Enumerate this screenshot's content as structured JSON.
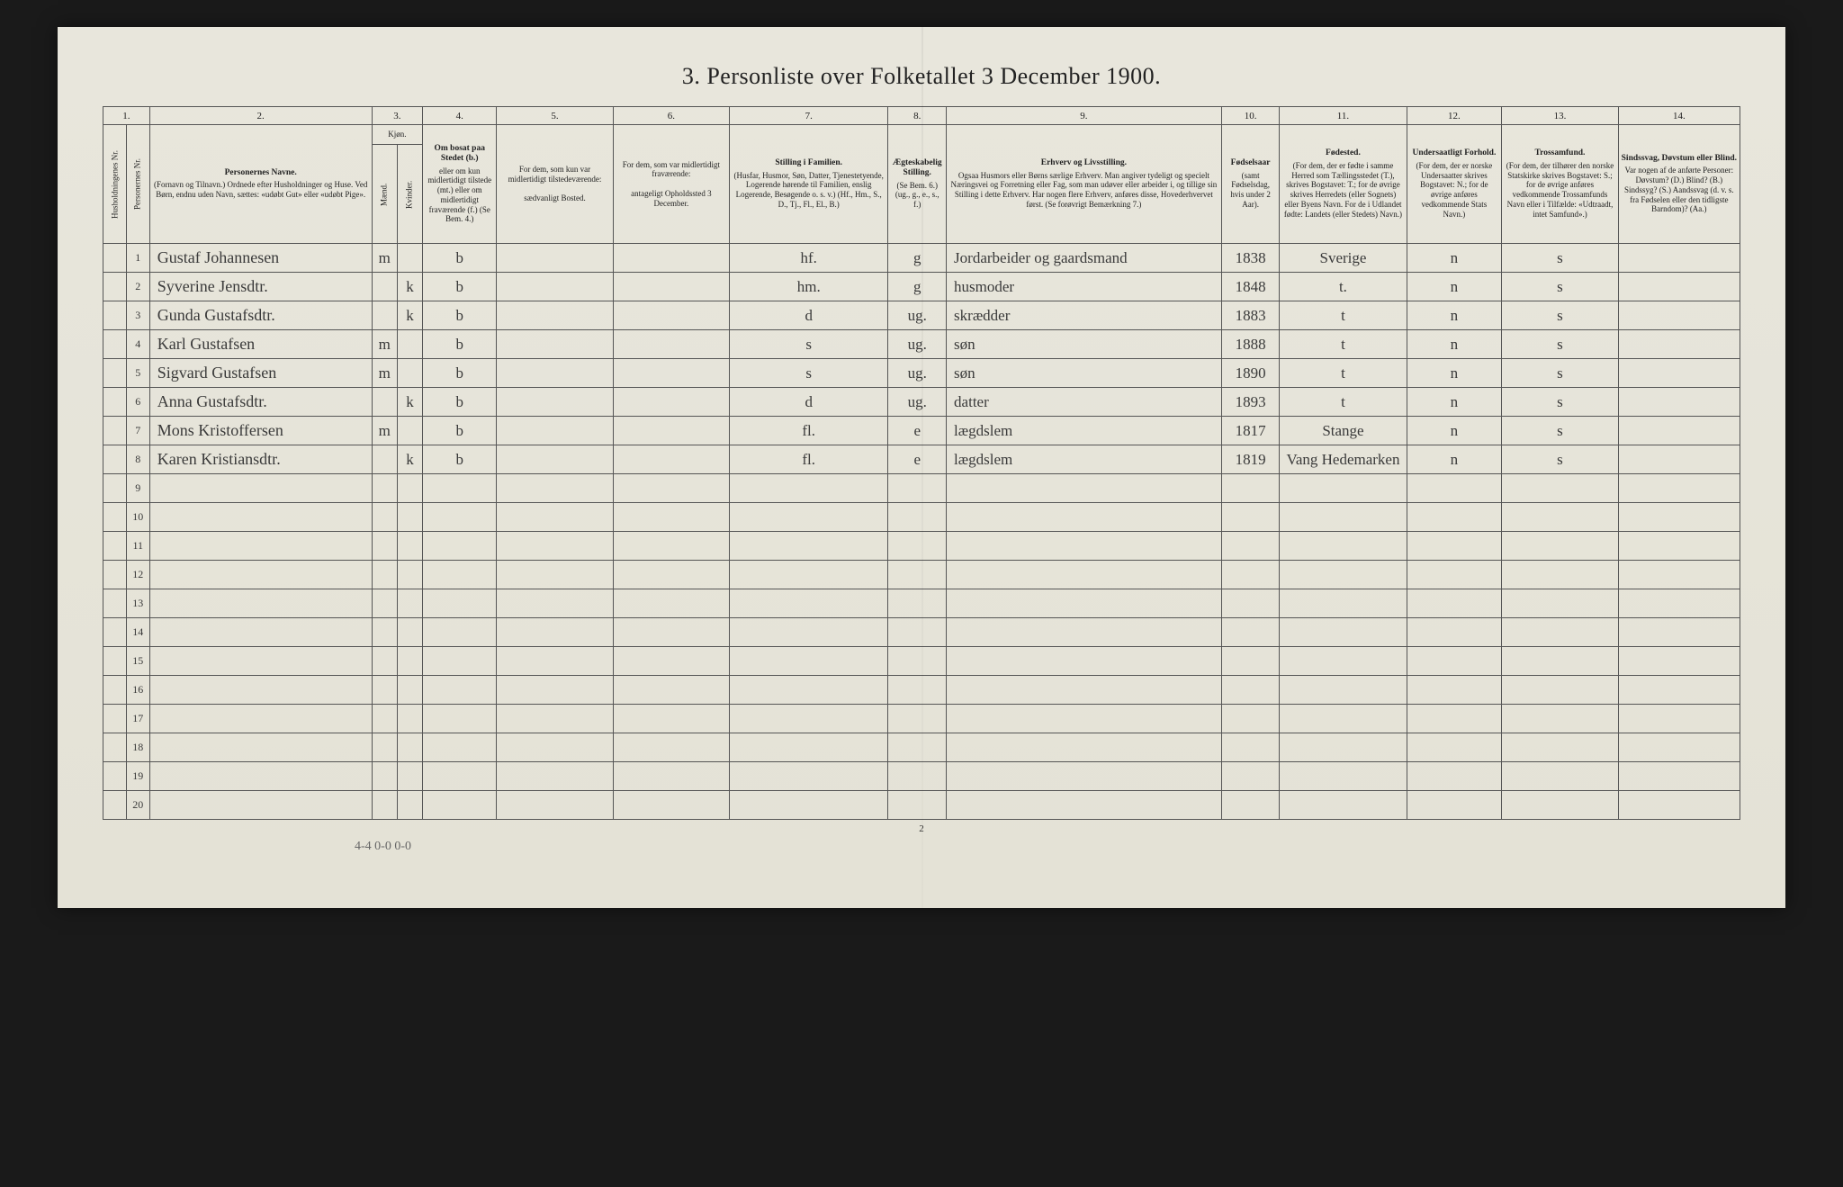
{
  "title": "3. Personliste over Folketallet 3 December 1900.",
  "column_numbers": [
    "1.",
    "2.",
    "3.",
    "4.",
    "5.",
    "6.",
    "7.",
    "8.",
    "9.",
    "10.",
    "11.",
    "12.",
    "13.",
    "14."
  ],
  "headers": {
    "h1a": "Husholdningenes Nr.",
    "h1b": "Personernes Nr.",
    "h2": "Personernes Navne.",
    "h2_sub": "(Fornavn og Tilnavn.) Ordnede efter Husholdninger og Huse. Ved Børn, endnu uden Navn, sættes: «udøbt Gut» eller «udøbt Pige».",
    "h3": "Kjøn.",
    "h3a": "Mænd.",
    "h3b": "Kvinder.",
    "h4": "Om bosat paa Stedet (b.)",
    "h4_sub": "eller om kun midlertidigt tilstede (mt.) eller om midlertidigt fraværende (f.) (Se Bem. 4.)",
    "h5": "For dem, som kun var midlertidigt tilstedeværende:",
    "h5_sub": "sædvanligt Bosted.",
    "h6": "For dem, som var midlertidigt fraværende:",
    "h6_sub": "antageligt Opholdssted 3 December.",
    "h7": "Stilling i Familien.",
    "h7_sub": "(Husfar, Husmor, Søn, Datter, Tjenestetyende, Logerende hørende til Familien, enslig Logerende, Besøgende o. s. v.) (Hf., Hm., S., D., Tj., Fl., El., B.)",
    "h8": "Ægteskabelig Stilling.",
    "h8_sub": "(Se Bem. 6.) (ug., g., e., s., f.)",
    "h9": "Erhverv og Livsstilling.",
    "h9_sub": "Ogsaa Husmors eller Børns særlige Erhverv. Man angiver tydeligt og specielt Næringsvei og Forretning eller Fag, som man udøver eller arbeider i, og tillige sin Stilling i dette Erhverv. Har nogen flere Erhverv, anføres disse, Hovederhvervet først. (Se forøvrigt Bemærkning 7.)",
    "h10": "Fødselsaar",
    "h10_sub": "(samt Fødselsdag, hvis under 2 Aar).",
    "h11": "Fødested.",
    "h11_sub": "(For dem, der er fødte i samme Herred som Tællingsstedet (T.), skrives Bogstavet: T.; for de øvrige skrives Herredets (eller Sognets) eller Byens Navn. For de i Udlandet fødte: Landets (eller Stedets) Navn.)",
    "h12": "Undersaatligt Forhold.",
    "h12_sub": "(For dem, der er norske Undersaatter skrives Bogstavet: N.; for de øvrige anføres vedkommende Stats Navn.)",
    "h13": "Trossamfund.",
    "h13_sub": "(For dem, der tilhører den norske Statskirke skrives Bogstavet: S.; for de øvrige anføres vedkommende Trossamfunds Navn eller i Tilfælde: «Udtraadt, intet Samfund».)",
    "h14": "Sindssvag, Døvstum eller Blind.",
    "h14_sub": "Var nogen af de anførte Personer: Døvstum? (D.) Blind? (B.) Sindssyg? (S.) Aandssvag (d. v. s. fra Fødselen eller den tidligste Barndom)? (Aa.)"
  },
  "rows": [
    {
      "n": "1",
      "name": "Gustaf Johannesen",
      "sex_m": "m",
      "sex_k": "",
      "res": "b",
      "c5": "",
      "c6": "",
      "fam": "hf.",
      "mar": "g",
      "occ": "Jordarbeider og gaardsmand",
      "year": "1838",
      "birthplace": "Sverige",
      "nat": "n",
      "rel": "s",
      "c14": ""
    },
    {
      "n": "2",
      "name": "Syverine Jensdtr.",
      "sex_m": "",
      "sex_k": "k",
      "res": "b",
      "c5": "",
      "c6": "",
      "fam": "hm.",
      "mar": "g",
      "occ": "husmoder",
      "year": "1848",
      "birthplace": "t.",
      "nat": "n",
      "rel": "s",
      "c14": ""
    },
    {
      "n": "3",
      "name": "Gunda Gustafsdtr.",
      "sex_m": "",
      "sex_k": "k",
      "res": "b",
      "c5": "",
      "c6": "",
      "fam": "d",
      "mar": "ug.",
      "occ": "skrædder",
      "year": "1883",
      "birthplace": "t",
      "nat": "n",
      "rel": "s",
      "c14": ""
    },
    {
      "n": "4",
      "name": "Karl Gustafsen",
      "sex_m": "m",
      "sex_k": "",
      "res": "b",
      "c5": "",
      "c6": "",
      "fam": "s",
      "mar": "ug.",
      "occ": "søn",
      "year": "1888",
      "birthplace": "t",
      "nat": "n",
      "rel": "s",
      "c14": ""
    },
    {
      "n": "5",
      "name": "Sigvard Gustafsen",
      "sex_m": "m",
      "sex_k": "",
      "res": "b",
      "c5": "",
      "c6": "",
      "fam": "s",
      "mar": "ug.",
      "occ": "søn",
      "year": "1890",
      "birthplace": "t",
      "nat": "n",
      "rel": "s",
      "c14": ""
    },
    {
      "n": "6",
      "name": "Anna Gustafsdtr.",
      "sex_m": "",
      "sex_k": "k",
      "res": "b",
      "c5": "",
      "c6": "",
      "fam": "d",
      "mar": "ug.",
      "occ": "datter",
      "year": "1893",
      "birthplace": "t",
      "nat": "n",
      "rel": "s",
      "c14": ""
    },
    {
      "n": "7",
      "name": "Mons Kristoffersen",
      "sex_m": "m",
      "sex_k": "",
      "res": "b",
      "c5": "",
      "c6": "",
      "fam": "fl.",
      "mar": "e",
      "occ": "lægdslem",
      "year": "1817",
      "birthplace": "Stange",
      "nat": "n",
      "rel": "s",
      "c14": ""
    },
    {
      "n": "8",
      "name": "Karen Kristiansdtr.",
      "sex_m": "",
      "sex_k": "k",
      "res": "b",
      "c5": "",
      "c6": "",
      "fam": "fl.",
      "mar": "e",
      "occ": "lægdslem",
      "year": "1819",
      "birthplace": "Vang Hedemarken",
      "nat": "n",
      "rel": "s",
      "c14": ""
    },
    {
      "n": "9",
      "name": "",
      "sex_m": "",
      "sex_k": "",
      "res": "",
      "c5": "",
      "c6": "",
      "fam": "",
      "mar": "",
      "occ": "",
      "year": "",
      "birthplace": "",
      "nat": "",
      "rel": "",
      "c14": ""
    },
    {
      "n": "10",
      "name": "",
      "sex_m": "",
      "sex_k": "",
      "res": "",
      "c5": "",
      "c6": "",
      "fam": "",
      "mar": "",
      "occ": "",
      "year": "",
      "birthplace": "",
      "nat": "",
      "rel": "",
      "c14": ""
    },
    {
      "n": "11",
      "name": "",
      "sex_m": "",
      "sex_k": "",
      "res": "",
      "c5": "",
      "c6": "",
      "fam": "",
      "mar": "",
      "occ": "",
      "year": "",
      "birthplace": "",
      "nat": "",
      "rel": "",
      "c14": ""
    },
    {
      "n": "12",
      "name": "",
      "sex_m": "",
      "sex_k": "",
      "res": "",
      "c5": "",
      "c6": "",
      "fam": "",
      "mar": "",
      "occ": "",
      "year": "",
      "birthplace": "",
      "nat": "",
      "rel": "",
      "c14": ""
    },
    {
      "n": "13",
      "name": "",
      "sex_m": "",
      "sex_k": "",
      "res": "",
      "c5": "",
      "c6": "",
      "fam": "",
      "mar": "",
      "occ": "",
      "year": "",
      "birthplace": "",
      "nat": "",
      "rel": "",
      "c14": ""
    },
    {
      "n": "14",
      "name": "",
      "sex_m": "",
      "sex_k": "",
      "res": "",
      "c5": "",
      "c6": "",
      "fam": "",
      "mar": "",
      "occ": "",
      "year": "",
      "birthplace": "",
      "nat": "",
      "rel": "",
      "c14": ""
    },
    {
      "n": "15",
      "name": "",
      "sex_m": "",
      "sex_k": "",
      "res": "",
      "c5": "",
      "c6": "",
      "fam": "",
      "mar": "",
      "occ": "",
      "year": "",
      "birthplace": "",
      "nat": "",
      "rel": "",
      "c14": ""
    },
    {
      "n": "16",
      "name": "",
      "sex_m": "",
      "sex_k": "",
      "res": "",
      "c5": "",
      "c6": "",
      "fam": "",
      "mar": "",
      "occ": "",
      "year": "",
      "birthplace": "",
      "nat": "",
      "rel": "",
      "c14": ""
    },
    {
      "n": "17",
      "name": "",
      "sex_m": "",
      "sex_k": "",
      "res": "",
      "c5": "",
      "c6": "",
      "fam": "",
      "mar": "",
      "occ": "",
      "year": "",
      "birthplace": "",
      "nat": "",
      "rel": "",
      "c14": ""
    },
    {
      "n": "18",
      "name": "",
      "sex_m": "",
      "sex_k": "",
      "res": "",
      "c5": "",
      "c6": "",
      "fam": "",
      "mar": "",
      "occ": "",
      "year": "",
      "birthplace": "",
      "nat": "",
      "rel": "",
      "c14": ""
    },
    {
      "n": "19",
      "name": "",
      "sex_m": "",
      "sex_k": "",
      "res": "",
      "c5": "",
      "c6": "",
      "fam": "",
      "mar": "",
      "occ": "",
      "year": "",
      "birthplace": "",
      "nat": "",
      "rel": "",
      "c14": ""
    },
    {
      "n": "20",
      "name": "",
      "sex_m": "",
      "sex_k": "",
      "res": "",
      "c5": "",
      "c6": "",
      "fam": "",
      "mar": "",
      "occ": "",
      "year": "",
      "birthplace": "",
      "nat": "",
      "rel": "",
      "c14": ""
    }
  ],
  "page_number": "2",
  "bottom_annotation": "4-4    0-0    0-0"
}
